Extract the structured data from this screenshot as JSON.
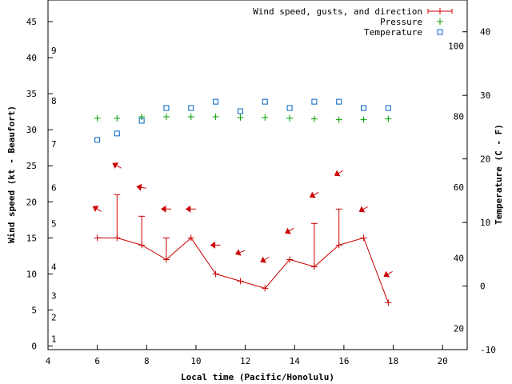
{
  "chart_data": {
    "type": "line",
    "title": "",
    "xlabel": "Local time (Pacific/Honolulu)",
    "ylabel": "Wind speed (kt - Beaufort)",
    "y2label": "Temperature (C - F)",
    "xlim": [
      4,
      21
    ],
    "ylim": [
      -0.5,
      48
    ],
    "y2lim": [
      -10,
      45
    ],
    "x_ticks": [
      4,
      6,
      8,
      10,
      12,
      14,
      16,
      18,
      20
    ],
    "y_ticks": [
      0,
      5,
      10,
      15,
      20,
      25,
      30,
      35,
      40,
      45
    ],
    "y2_ticks": [
      -10,
      0,
      10,
      20,
      30,
      40
    ],
    "beaufort_ticks": [
      {
        "label": "1",
        "kt": 1
      },
      {
        "label": "2",
        "kt": 4
      },
      {
        "label": "3",
        "kt": 7
      },
      {
        "label": "4",
        "kt": 11
      },
      {
        "label": "5",
        "kt": 17
      },
      {
        "label": "6",
        "kt": 22
      },
      {
        "label": "7",
        "kt": 28
      },
      {
        "label": "8",
        "kt": 34
      },
      {
        "label": "9",
        "kt": 41
      }
    ],
    "fahrenheit_ticks": [
      {
        "label": "20",
        "c": -6.67
      },
      {
        "label": "40",
        "c": 4.44
      },
      {
        "label": "60",
        "c": 15.56
      },
      {
        "label": "80",
        "c": 26.67
      },
      {
        "label": "100",
        "c": 37.78
      }
    ],
    "legend_position": "top-right",
    "series": [
      {
        "name": "Wind speed, gusts, and direction",
        "color": "#cc0000",
        "x": [
          6.0,
          6.8,
          7.8,
          8.8,
          9.8,
          10.8,
          11.8,
          12.8,
          13.8,
          14.8,
          15.8,
          16.8,
          17.8
        ],
        "speed": [
          15,
          15,
          14,
          12,
          15,
          10,
          9,
          8,
          12,
          11,
          14,
          15,
          6
        ],
        "gust": [
          15,
          21,
          18,
          15,
          15,
          10,
          9,
          8,
          12,
          17,
          19,
          15,
          6
        ],
        "arrow_y": [
          19,
          25,
          22,
          19,
          19,
          14,
          13,
          12,
          16,
          21,
          24,
          19,
          10
        ],
        "direction_deg": [
          120,
          120,
          100,
          90,
          90,
          90,
          70,
          60,
          60,
          60,
          60,
          60,
          60
        ]
      },
      {
        "name": "Pressure",
        "color": "#00a000",
        "x": [
          6.0,
          6.8,
          7.8,
          8.8,
          9.8,
          10.8,
          11.8,
          12.8,
          13.8,
          14.8,
          15.8,
          16.8,
          17.8
        ],
        "values": [
          31.6,
          31.6,
          31.8,
          31.8,
          31.8,
          31.8,
          31.7,
          31.7,
          31.6,
          31.5,
          31.4,
          31.4,
          31.5
        ]
      },
      {
        "name": "Temperature",
        "color": "#0060c0",
        "x": [
          6.0,
          6.8,
          7.8,
          8.8,
          9.8,
          10.8,
          11.8,
          12.8,
          13.8,
          14.8,
          15.8,
          16.8,
          17.8
        ],
        "values": [
          23,
          24,
          26,
          28,
          28,
          29,
          27.5,
          29,
          28,
          29,
          29,
          28,
          28
        ]
      }
    ]
  }
}
